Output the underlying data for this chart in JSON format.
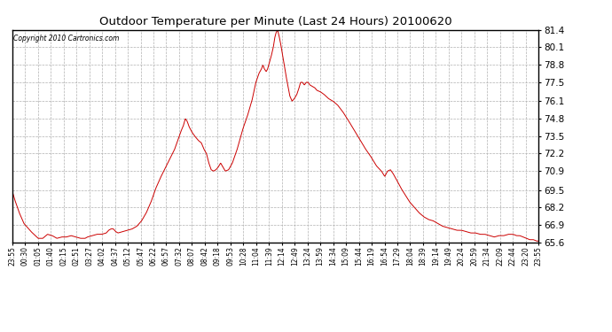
{
  "title": "Outdoor Temperature per Minute (Last 24 Hours) 20100620",
  "copyright": "Copyright 2010 Cartronics.com",
  "line_color": "#cc0000",
  "background_color": "#ffffff",
  "grid_color": "#b0b0b0",
  "ylim": [
    65.6,
    81.4
  ],
  "yticks": [
    65.6,
    66.9,
    68.2,
    69.5,
    70.9,
    72.2,
    73.5,
    74.8,
    76.1,
    77.5,
    78.8,
    80.1,
    81.4
  ],
  "xtick_labels": [
    "23:55",
    "00:30",
    "01:05",
    "01:40",
    "02:15",
    "02:51",
    "03:27",
    "04:02",
    "04:37",
    "05:12",
    "05:47",
    "06:22",
    "06:57",
    "07:32",
    "08:07",
    "08:42",
    "09:18",
    "09:53",
    "10:28",
    "11:04",
    "11:39",
    "12:14",
    "12:49",
    "13:24",
    "13:59",
    "14:34",
    "15:09",
    "15:44",
    "16:19",
    "16:54",
    "17:29",
    "18:04",
    "18:39",
    "19:14",
    "19:49",
    "20:24",
    "20:59",
    "21:34",
    "22:09",
    "22:44",
    "23:20",
    "23:55"
  ],
  "data_keypoints": [
    [
      0,
      69.4
    ],
    [
      5,
      68.8
    ],
    [
      15,
      67.8
    ],
    [
      25,
      67.0
    ],
    [
      40,
      66.4
    ],
    [
      55,
      65.9
    ],
    [
      65,
      65.9
    ],
    [
      75,
      66.2
    ],
    [
      85,
      66.1
    ],
    [
      95,
      65.9
    ],
    [
      105,
      66.0
    ],
    [
      115,
      66.0
    ],
    [
      125,
      66.1
    ],
    [
      135,
      66.0
    ],
    [
      145,
      65.9
    ],
    [
      155,
      65.9
    ],
    [
      160,
      66.0
    ],
    [
      170,
      66.1
    ],
    [
      180,
      66.2
    ],
    [
      190,
      66.2
    ],
    [
      200,
      66.3
    ],
    [
      205,
      66.5
    ],
    [
      210,
      66.6
    ],
    [
      215,
      66.6
    ],
    [
      220,
      66.4
    ],
    [
      225,
      66.3
    ],
    [
      235,
      66.4
    ],
    [
      245,
      66.5
    ],
    [
      255,
      66.6
    ],
    [
      265,
      66.8
    ],
    [
      275,
      67.2
    ],
    [
      285,
      67.8
    ],
    [
      295,
      68.6
    ],
    [
      305,
      69.6
    ],
    [
      315,
      70.4
    ],
    [
      325,
      71.1
    ],
    [
      335,
      71.8
    ],
    [
      345,
      72.5
    ],
    [
      352,
      73.2
    ],
    [
      358,
      73.8
    ],
    [
      364,
      74.3
    ],
    [
      368,
      74.8
    ],
    [
      372,
      74.6
    ],
    [
      376,
      74.2
    ],
    [
      382,
      73.8
    ],
    [
      388,
      73.5
    ],
    [
      395,
      73.2
    ],
    [
      402,
      73.0
    ],
    [
      408,
      72.5
    ],
    [
      413,
      72.2
    ],
    [
      418,
      71.5
    ],
    [
      423,
      71.0
    ],
    [
      428,
      70.9
    ],
    [
      433,
      71.0
    ],
    [
      438,
      71.2
    ],
    [
      443,
      71.5
    ],
    [
      448,
      71.2
    ],
    [
      453,
      70.9
    ],
    [
      460,
      71.0
    ],
    [
      468,
      71.5
    ],
    [
      478,
      72.5
    ],
    [
      490,
      74.0
    ],
    [
      500,
      75.0
    ],
    [
      510,
      76.2
    ],
    [
      518,
      77.5
    ],
    [
      525,
      78.2
    ],
    [
      530,
      78.5
    ],
    [
      533,
      78.8
    ],
    [
      536,
      78.5
    ],
    [
      540,
      78.3
    ],
    [
      543,
      78.5
    ],
    [
      547,
      79.0
    ],
    [
      551,
      79.5
    ],
    [
      555,
      80.1
    ],
    [
      558,
      80.8
    ],
    [
      561,
      81.2
    ],
    [
      564,
      81.4
    ],
    [
      567,
      81.0
    ],
    [
      570,
      80.5
    ],
    [
      575,
      79.5
    ],
    [
      582,
      78.0
    ],
    [
      590,
      76.5
    ],
    [
      595,
      76.1
    ],
    [
      600,
      76.3
    ],
    [
      605,
      76.6
    ],
    [
      609,
      77.0
    ],
    [
      613,
      77.5
    ],
    [
      617,
      77.5
    ],
    [
      621,
      77.3
    ],
    [
      625,
      77.5
    ],
    [
      629,
      77.5
    ],
    [
      633,
      77.3
    ],
    [
      638,
      77.2
    ],
    [
      643,
      77.1
    ],
    [
      648,
      76.9
    ],
    [
      655,
      76.8
    ],
    [
      663,
      76.6
    ],
    [
      672,
      76.3
    ],
    [
      682,
      76.1
    ],
    [
      692,
      75.8
    ],
    [
      703,
      75.3
    ],
    [
      714,
      74.7
    ],
    [
      726,
      74.0
    ],
    [
      738,
      73.3
    ],
    [
      750,
      72.6
    ],
    [
      762,
      72.0
    ],
    [
      774,
      71.3
    ],
    [
      785,
      70.9
    ],
    [
      792,
      70.5
    ],
    [
      798,
      70.9
    ],
    [
      804,
      71.0
    ],
    [
      810,
      70.7
    ],
    [
      818,
      70.2
    ],
    [
      827,
      69.6
    ],
    [
      836,
      69.1
    ],
    [
      845,
      68.6
    ],
    [
      855,
      68.2
    ],
    [
      865,
      67.8
    ],
    [
      875,
      67.5
    ],
    [
      885,
      67.3
    ],
    [
      895,
      67.2
    ],
    [
      905,
      67.0
    ],
    [
      915,
      66.8
    ],
    [
      925,
      66.7
    ],
    [
      935,
      66.6
    ],
    [
      945,
      66.5
    ],
    [
      955,
      66.5
    ],
    [
      965,
      66.4
    ],
    [
      975,
      66.3
    ],
    [
      985,
      66.3
    ],
    [
      995,
      66.2
    ],
    [
      1005,
      66.2
    ],
    [
      1015,
      66.1
    ],
    [
      1025,
      66.0
    ],
    [
      1035,
      66.1
    ],
    [
      1045,
      66.1
    ],
    [
      1055,
      66.2
    ],
    [
      1065,
      66.2
    ],
    [
      1072,
      66.1
    ],
    [
      1079,
      66.1
    ],
    [
      1086,
      66.0
    ],
    [
      1093,
      65.9
    ],
    [
      1100,
      65.8
    ],
    [
      1108,
      65.8
    ],
    [
      1115,
      65.7
    ],
    [
      1119,
      65.7
    ]
  ]
}
